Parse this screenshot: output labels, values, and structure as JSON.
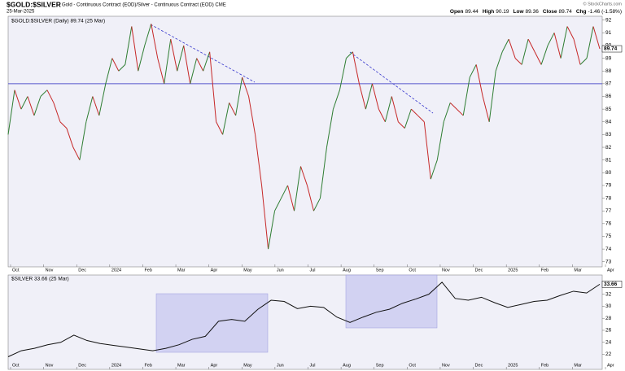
{
  "header": {
    "symbol": "$GOLD:$SILVER",
    "description": "Gold - Continuous Contract (EOD)/Silver - Continuous Contract (EOD) CME",
    "date": "25-Mar-2025",
    "copyright": "© StockCharts.com",
    "quote": [
      {
        "label": "Open",
        "value": "89.44"
      },
      {
        "label": "High",
        "value": "90.19"
      },
      {
        "label": "Low",
        "value": "89.36"
      },
      {
        "label": "Close",
        "value": "89.74"
      },
      {
        "label": "Chg",
        "value": "-1.46 (-1.58%)"
      }
    ]
  },
  "chart_data": [
    {
      "type": "line",
      "title": "$GOLD:$SILVER (Daily) 89.74 (25 Mar)",
      "up_color": "#2e7d32",
      "down_color": "#c62828",
      "x_labels": [
        "Oct",
        "Nov",
        "Dec",
        "2024",
        "Feb",
        "Mar",
        "Apr",
        "May",
        "Jun",
        "Jul",
        "Aug",
        "Sep",
        "Oct",
        "Nov",
        "Dec",
        "2025",
        "Feb",
        "Mar",
        "Apr"
      ],
      "series": [
        {
          "name": "$GOLD:$SILVER",
          "values": [
            83,
            86.5,
            85,
            86,
            84.5,
            86,
            86.5,
            85.5,
            84,
            83.5,
            82,
            81,
            84,
            86,
            84.5,
            87,
            89,
            88,
            88.5,
            91.5,
            88,
            90,
            91.7,
            89,
            87,
            90.5,
            88,
            90,
            87,
            89,
            88,
            89.5,
            84,
            83,
            85.5,
            84.5,
            87.5,
            86,
            83,
            79,
            74,
            77,
            78,
            79,
            77,
            80.5,
            79,
            77,
            78,
            82,
            85,
            86.5,
            89,
            89.5,
            87,
            85,
            87,
            85,
            84,
            86,
            84,
            83.5,
            85,
            84.5,
            84,
            79.5,
            81,
            84,
            85.5,
            85,
            84.5,
            87.5,
            88.5,
            86,
            84,
            88,
            89.5,
            90.5,
            89,
            88.5,
            90.5,
            89.5,
            88.5,
            90,
            91,
            89,
            91.5,
            90.5,
            88.5,
            89,
            91.5,
            89.74
          ]
        }
      ],
      "hline": 87,
      "hline_color": "#5555cc",
      "ylim": [
        72.6,
        92.3
      ],
      "yticks": [
        73,
        74,
        75,
        76,
        77,
        78,
        79,
        80,
        81,
        82,
        83,
        84,
        85,
        86,
        87,
        88,
        89,
        90,
        91,
        92
      ]
    },
    {
      "type": "line",
      "title": "$SILVER 33.66 (25 Mar)",
      "color": "#111111",
      "series": [
        {
          "name": "$SILVER",
          "values": [
            21.6,
            22.6,
            23.0,
            23.6,
            24.0,
            25.2,
            24.3,
            23.8,
            23.5,
            23.2,
            22.9,
            22.6,
            23.0,
            23.6,
            24.5,
            25.0,
            27.5,
            27.8,
            27.5,
            29.5,
            31.0,
            30.8,
            29.6,
            30.0,
            29.8,
            28.2,
            27.3,
            28.2,
            29.0,
            29.5,
            30.5,
            31.2,
            32.0,
            34.0,
            31.3,
            31.0,
            31.5,
            30.6,
            29.8,
            30.3,
            30.8,
            31.0,
            31.8,
            32.5,
            32.2,
            33.66
          ]
        }
      ],
      "ylim": [
        19.5,
        35.2
      ],
      "yticks": [
        22,
        24,
        26,
        28,
        30,
        32
      ]
    }
  ]
}
